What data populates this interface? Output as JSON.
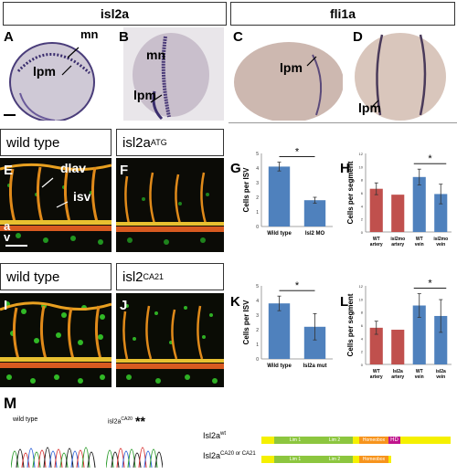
{
  "headers": {
    "isl2a": "isl2a",
    "fli1a": "fli1a",
    "wild_type_1": "wild type",
    "isl2a_atg_base": "isl2a",
    "isl2a_atg_sup": "ATG",
    "wild_type_2": "wild type",
    "isl2_ca21_base": "isl2",
    "isl2_ca21_sup": "CA21"
  },
  "panel_letters": {
    "A": "A",
    "B": "B",
    "C": "C",
    "D": "D",
    "E": "E",
    "F": "F",
    "G": "G",
    "H": "H",
    "I": "I",
    "J": "J",
    "K": "K",
    "L": "L",
    "M": "M"
  },
  "annotations": {
    "mn_a": "mn",
    "lpm_a": "lpm",
    "mn_b": "mn",
    "lpm_b": "lpm",
    "lpm_c": "lpm",
    "lpm_d": "lpm",
    "dlav": "dlav",
    "isv": "isv",
    "a": "a",
    "v": "v"
  },
  "sequence": {
    "wild_type": "wild type",
    "mut_base": "isl2a",
    "mut_sup": "CA20",
    "stars": "**",
    "wt_prefix": "Isl2a",
    "wt_sup": "wt",
    "mut_prefix": "Isl2a",
    "mut_sup2": "CA20 or CA21",
    "lim1": "Lim 1",
    "lim2": "Lim 2",
    "homeobox": "Homeobox",
    "hd": "HD"
  },
  "colors": {
    "bar_blue": "#4f81bd",
    "bar_red": "#c0504d",
    "embryo_stain": "#2e2350"
  },
  "chart_data": [
    {
      "panel": "G",
      "type": "bar",
      "categories": [
        "Wild type",
        "Isl2 MO"
      ],
      "values": [
        4.1,
        1.8
      ],
      "errors": [
        0.3,
        0.2
      ],
      "ylabel": "Cells per ISV",
      "ylim": [
        0,
        5
      ],
      "yticks": [
        "0",
        "1",
        "2",
        "3",
        "4",
        "5"
      ],
      "significance": "*",
      "colors": [
        "#4f81bd",
        "#4f81bd"
      ]
    },
    {
      "panel": "H",
      "type": "bar",
      "categories": [
        "WT artery",
        "isl2mo artery",
        "WT vein",
        "isl2mo vein"
      ],
      "values": [
        6.6,
        5.7,
        8.4,
        5.8
      ],
      "errors": [
        0.9,
        0,
        1.2,
        1.5
      ],
      "ylabel": "Cells per segment",
      "ylim": [
        0,
        12
      ],
      "yticks": [
        "0",
        "2",
        "4",
        "6",
        "8",
        "10",
        "12"
      ],
      "significance": "*",
      "colors": [
        "#c0504d",
        "#c0504d",
        "#4f81bd",
        "#4f81bd"
      ]
    },
    {
      "panel": "K",
      "type": "bar",
      "categories": [
        "Wild type",
        "Isl2a mut"
      ],
      "values": [
        3.8,
        2.2
      ],
      "errors": [
        0.5,
        0.9
      ],
      "ylabel": "Cells per ISV",
      "ylim": [
        0,
        5
      ],
      "yticks": [
        "0",
        "1",
        "2",
        "3",
        "4",
        "5"
      ],
      "significance": "*",
      "colors": [
        "#4f81bd",
        "#4f81bd"
      ]
    },
    {
      "panel": "L",
      "type": "bar",
      "categories": [
        "WT artery",
        "Isl2a artery",
        "WT vein",
        "isl2a vein"
      ],
      "values": [
        5.6,
        5.3,
        9.0,
        7.4
      ],
      "errors": [
        1.0,
        0,
        1.8,
        2.5
      ],
      "ylabel": "Cells per segment",
      "ylim": [
        0,
        12
      ],
      "yticks": [
        "0",
        "2",
        "4",
        "6",
        "8",
        "10",
        "12"
      ],
      "significance": "*",
      "colors": [
        "#c0504d",
        "#c0504d",
        "#4f81bd",
        "#4f81bd"
      ]
    }
  ]
}
